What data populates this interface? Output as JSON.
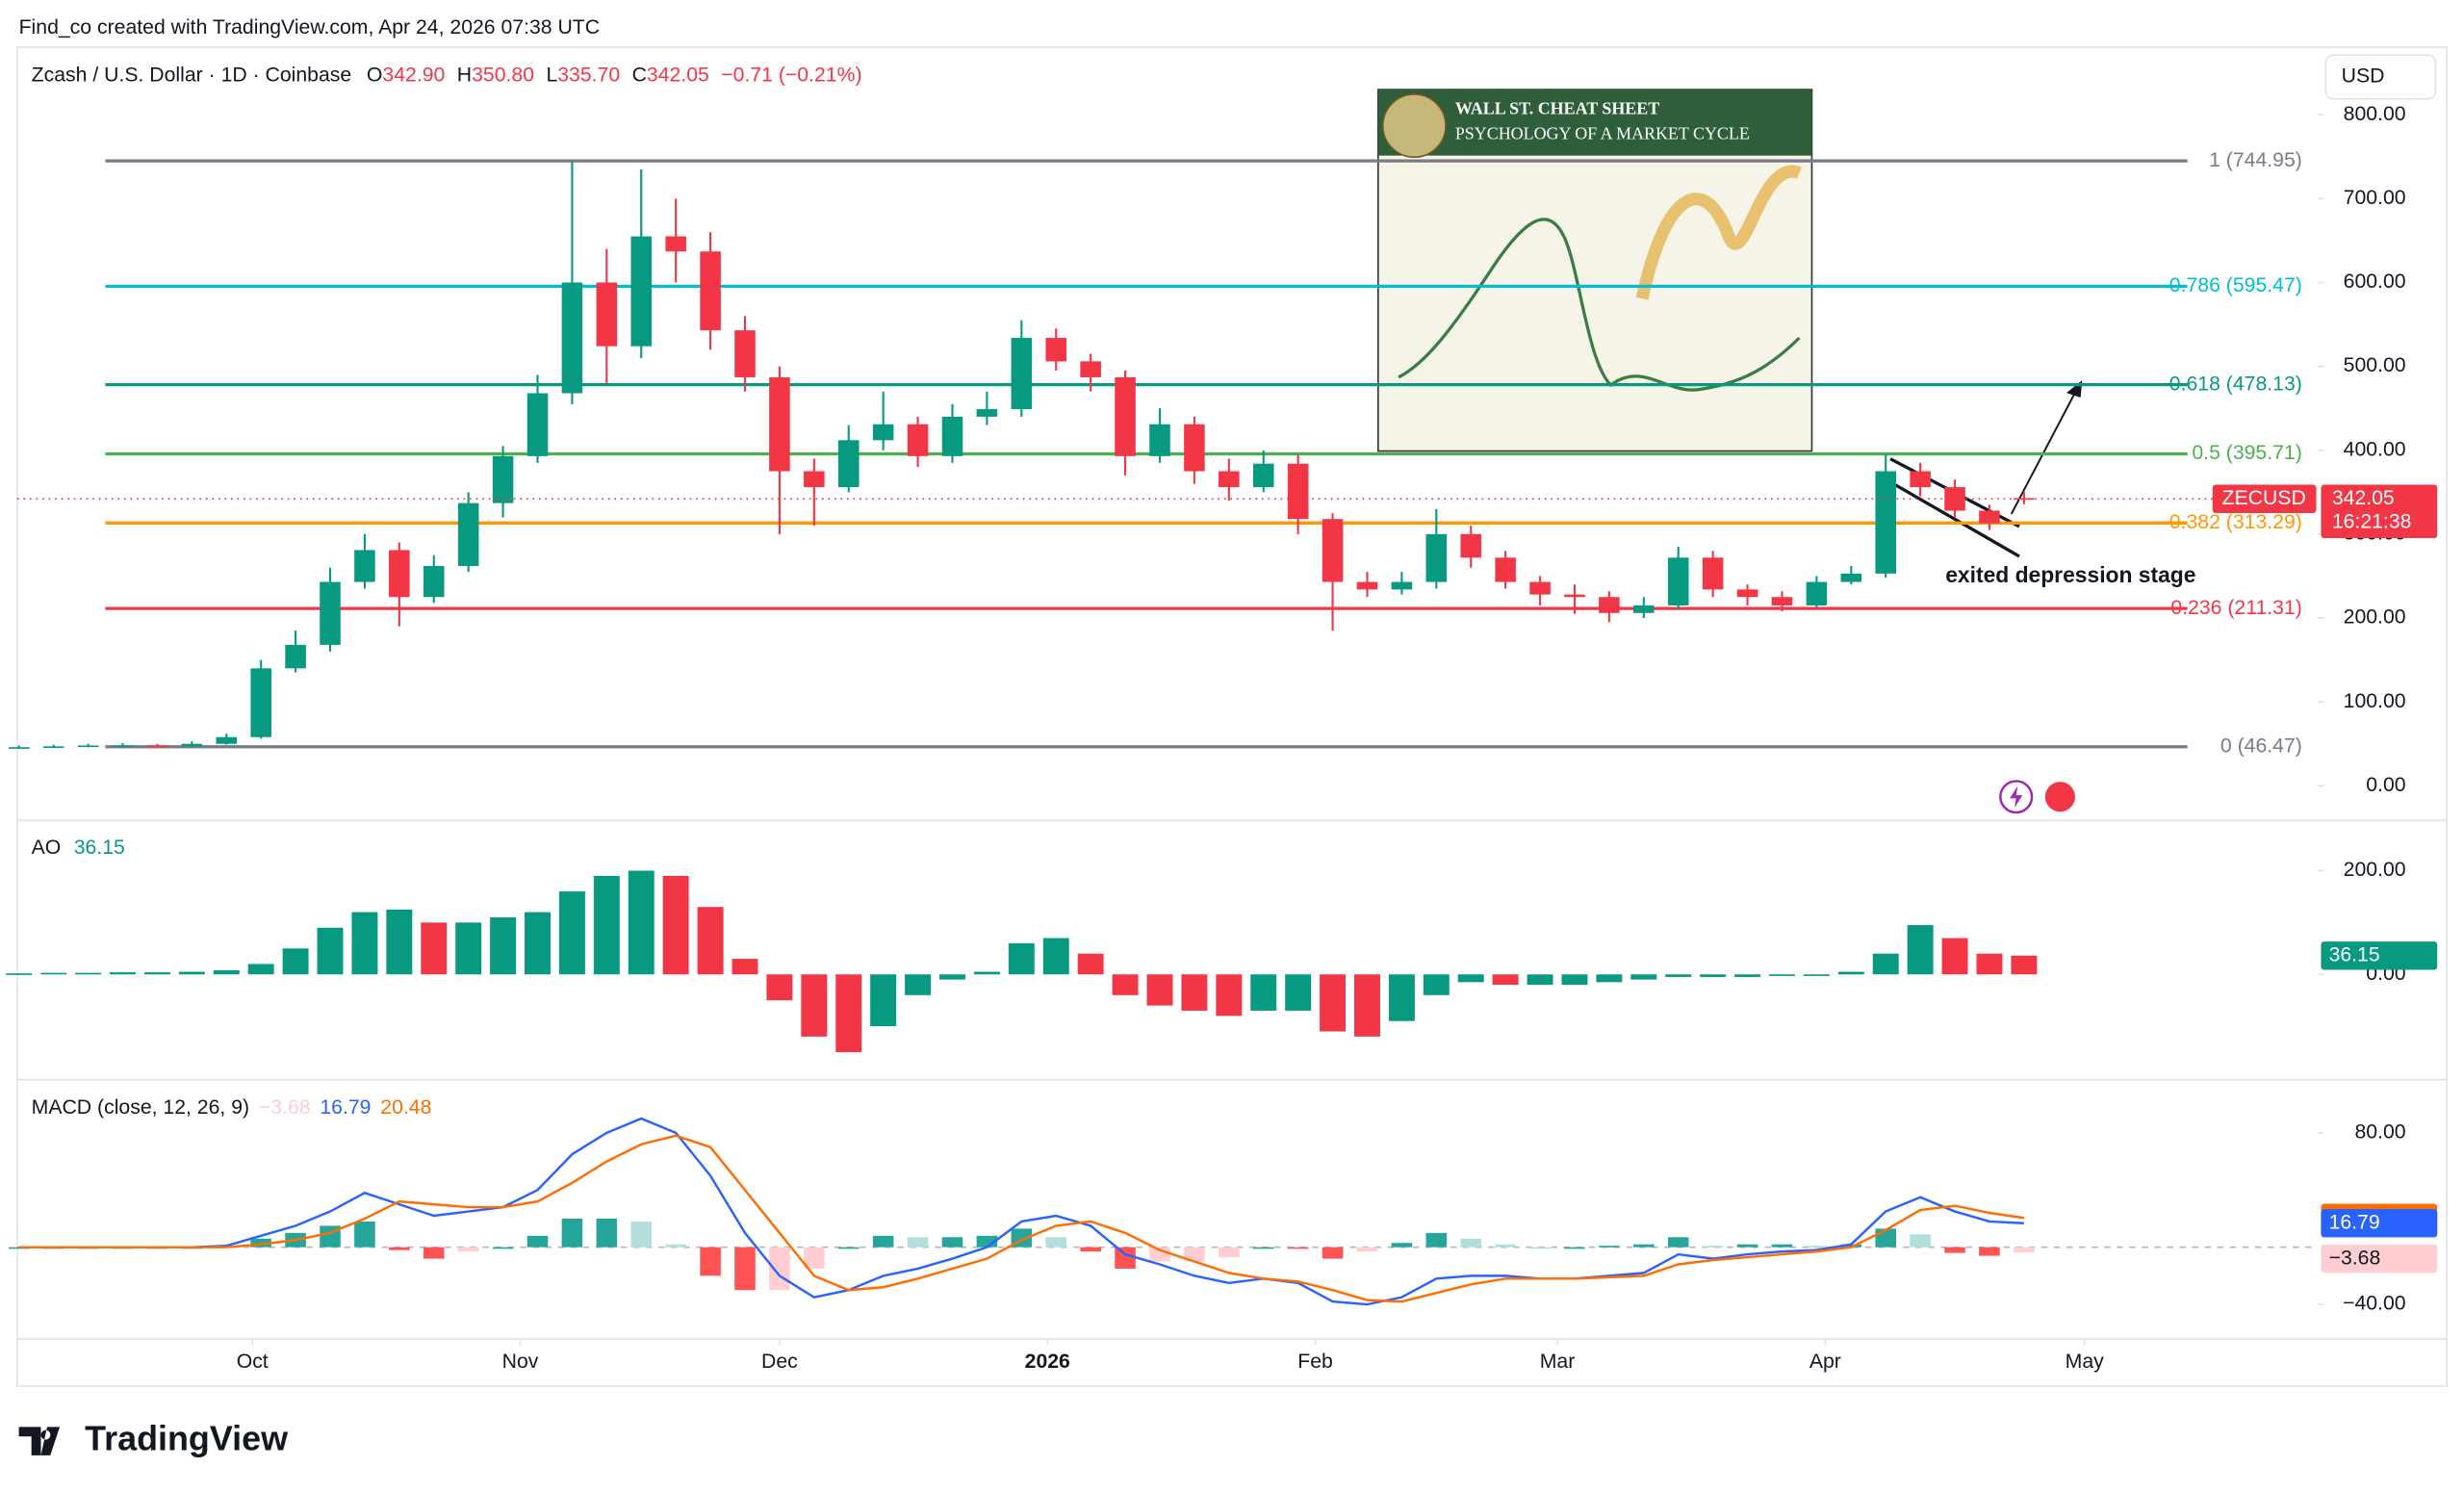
{
  "header": {
    "credit": "Find_co created with TradingView.com, Apr 24, 2026 07:38 UTC",
    "currency": "USD"
  },
  "footer": {
    "brand": "TradingView"
  },
  "chart_data": [
    {
      "type": "candlestick",
      "title": "Zcash / U.S. Dollar · 1D · Coinbase",
      "ohlc_legend": [
        {
          "label": "O",
          "value": "342.90"
        },
        {
          "label": "H",
          "value": "350.80"
        },
        {
          "label": "L",
          "value": "335.70"
        },
        {
          "label": "C",
          "value": "342.05"
        }
      ],
      "change": "−0.71 (−0.21%)",
      "up_color": "#089981",
      "down_color": "#f23645",
      "x": [
        0,
        4,
        8,
        12,
        16,
        20,
        24,
        28,
        32,
        36,
        40,
        44,
        48,
        52,
        56,
        60,
        64,
        68,
        72,
        76,
        80,
        84,
        88,
        92,
        96,
        100,
        104,
        108,
        112,
        116,
        120,
        124,
        128,
        132,
        136,
        140,
        144,
        148,
        152,
        156,
        160,
        164,
        168,
        172,
        176,
        180,
        184,
        188,
        192,
        196,
        200,
        204,
        208,
        212,
        216,
        220,
        224,
        228,
        232
      ],
      "open": [
        45,
        46,
        47,
        48,
        48,
        47,
        50,
        58,
        140,
        168,
        243,
        281,
        225,
        262,
        337,
        393,
        468,
        600,
        524,
        655,
        637,
        543,
        487,
        375,
        356,
        412,
        431,
        393,
        440,
        449,
        534,
        506,
        487,
        393,
        431,
        375,
        356,
        384,
        318,
        243,
        234,
        243,
        300,
        272,
        243,
        228,
        225,
        206,
        215,
        272,
        234,
        225,
        215,
        243,
        253,
        375,
        356,
        328,
        342.9
      ],
      "high": [
        48,
        49,
        50,
        51,
        50,
        53,
        62,
        150,
        185,
        260,
        300,
        290,
        275,
        350,
        405,
        490,
        745,
        640,
        735,
        700,
        660,
        560,
        500,
        390,
        430,
        470,
        440,
        455,
        470,
        555,
        545,
        515,
        495,
        450,
        440,
        390,
        400,
        395,
        325,
        255,
        255,
        330,
        310,
        280,
        250,
        240,
        232,
        225,
        285,
        280,
        240,
        232,
        250,
        262,
        395,
        385,
        365,
        335,
        350.8
      ],
      "low": [
        44,
        45,
        46,
        46,
        45,
        46,
        49,
        56,
        135,
        160,
        235,
        190,
        218,
        255,
        320,
        385,
        455,
        480,
        510,
        600,
        520,
        470,
        300,
        310,
        350,
        400,
        380,
        385,
        430,
        440,
        495,
        470,
        370,
        385,
        360,
        340,
        350,
        300,
        185,
        225,
        228,
        235,
        260,
        235,
        215,
        205,
        195,
        200,
        210,
        225,
        215,
        208,
        212,
        240,
        248,
        345,
        320,
        305,
        335.7
      ],
      "close": [
        46,
        47,
        48,
        48,
        47,
        50,
        58,
        140,
        168,
        243,
        281,
        225,
        262,
        337,
        393,
        468,
        600,
        524,
        655,
        637,
        543,
        487,
        375,
        356,
        412,
        431,
        393,
        440,
        449,
        534,
        506,
        487,
        393,
        431,
        375,
        356,
        384,
        318,
        243,
        234,
        243,
        300,
        272,
        243,
        228,
        225,
        206,
        215,
        272,
        234,
        225,
        215,
        243,
        253,
        375,
        356,
        328,
        313,
        342.05
      ],
      "xlim": [
        -0.2,
        266
      ],
      "xticks": [
        {
          "value": 27,
          "label": "Oct"
        },
        {
          "value": 58,
          "label": "Nov"
        },
        {
          "value": 88,
          "label": "Dec"
        },
        {
          "value": 119,
          "label": "2026",
          "bold": true
        },
        {
          "value": 150,
          "label": "Feb"
        },
        {
          "value": 178,
          "label": "Mar"
        },
        {
          "value": 209,
          "label": "Apr"
        },
        {
          "value": 239,
          "label": "May"
        }
      ],
      "ylim": [
        -37.5,
        880.6
      ],
      "yticks": [
        {
          "value": 800,
          "label": "800.00"
        },
        {
          "value": 700,
          "label": "700.00"
        },
        {
          "value": 600,
          "label": "600.00"
        },
        {
          "value": 500,
          "label": "500.00"
        },
        {
          "value": 400,
          "label": "400.00"
        },
        {
          "value": 300,
          "label": "300.00"
        },
        {
          "value": 200,
          "label": "200.00"
        },
        {
          "value": 100,
          "label": "100.00"
        },
        {
          "value": 0,
          "label": "0.00"
        }
      ],
      "fib_levels": [
        {
          "value": 744.95,
          "label": "1 (744.95)",
          "color": "#787b86"
        },
        {
          "value": 595.47,
          "label": "0.786 (595.47)",
          "color": "#00bcd4"
        },
        {
          "value": 478.13,
          "label": "0.618 (478.13)",
          "color": "#089981"
        },
        {
          "value": 395.71,
          "label": "0.5 (395.71)",
          "color": "#4caf50"
        },
        {
          "value": 313.29,
          "label": "0.382 (313.29)",
          "color": "#ff9800"
        },
        {
          "value": 211.31,
          "label": "0.236 (211.31)",
          "color": "#f23645"
        },
        {
          "value": 46.47,
          "label": "0 (46.47)",
          "color": "#787b86"
        }
      ],
      "price_tag": {
        "symbol": "ZECUSD",
        "value": 342.05,
        "countdown": "16:21:38"
      },
      "annotation": "exited depression stage",
      "inset": {
        "title": "WALL ST. CHEAT SHEET",
        "subtitle": "PSYCHOLOGY OF A MARKET CYCLE"
      }
    },
    {
      "type": "ao",
      "title": "AO",
      "x": [
        0,
        4,
        8,
        12,
        16,
        20,
        24,
        28,
        32,
        36,
        40,
        44,
        48,
        52,
        56,
        60,
        64,
        68,
        72,
        76,
        80,
        84,
        88,
        92,
        96,
        100,
        104,
        108,
        112,
        116,
        120,
        124,
        128,
        132,
        136,
        140,
        144,
        148,
        152,
        156,
        160,
        164,
        168,
        172,
        176,
        180,
        184,
        188,
        192,
        196,
        200,
        204,
        208,
        212,
        216,
        220,
        224,
        228,
        232
      ],
      "values": [
        2,
        3,
        3,
        4,
        4,
        5,
        8,
        20,
        50,
        90,
        120,
        125,
        100,
        100,
        110,
        120,
        160,
        190,
        200,
        190,
        130,
        30,
        -50,
        -120,
        -150,
        -100,
        -40,
        -10,
        5,
        60,
        70,
        40,
        -40,
        -60,
        -70,
        -80,
        -70,
        -70,
        -110,
        -120,
        -90,
        -40,
        -15,
        -20,
        -20,
        -20,
        -15,
        -10,
        -5,
        -5,
        -5,
        -3,
        0,
        5,
        40,
        95,
        70,
        40,
        36.15
      ],
      "up_color": "#089981",
      "down_color": "#f23645",
      "xlim": [
        -0.2,
        266
      ],
      "ylim": [
        -197,
        291
      ],
      "yticks": [
        {
          "value": 200,
          "label": "200.00"
        },
        {
          "value": 0,
          "label": "0.00"
        }
      ]
    },
    {
      "type": "macd",
      "title": "MACD (close, 12, 26, 9)",
      "x": [
        0,
        4,
        8,
        12,
        16,
        20,
        24,
        28,
        32,
        36,
        40,
        44,
        48,
        52,
        56,
        60,
        64,
        68,
        72,
        76,
        80,
        84,
        88,
        92,
        96,
        100,
        104,
        108,
        112,
        116,
        120,
        124,
        128,
        132,
        136,
        140,
        144,
        148,
        152,
        156,
        160,
        164,
        168,
        172,
        176,
        180,
        184,
        188,
        192,
        196,
        200,
        204,
        208,
        212,
        216,
        220,
        224,
        228,
        232
      ],
      "series": [
        {
          "name": "MACD",
          "color": "#2962ff",
          "values": [
            0,
            0,
            0,
            0,
            0,
            0,
            1,
            8,
            15,
            25,
            38,
            30,
            22,
            25,
            28,
            40,
            65,
            80,
            90,
            80,
            50,
            10,
            -20,
            -35,
            -30,
            -20,
            -15,
            -8,
            0,
            18,
            22,
            15,
            -5,
            -12,
            -20,
            -25,
            -22,
            -25,
            -38,
            -40,
            -35,
            -22,
            -20,
            -20,
            -22,
            -22,
            -20,
            -18,
            -5,
            -8,
            -5,
            -3,
            -2,
            2,
            25,
            35,
            25,
            18,
            16.79
          ]
        },
        {
          "name": "Signal",
          "color": "#ff6d00",
          "values": [
            0,
            0,
            0,
            0,
            0,
            0,
            0,
            2,
            5,
            10,
            20,
            32,
            30,
            28,
            28,
            32,
            45,
            60,
            72,
            78,
            70,
            40,
            10,
            -20,
            -30,
            -28,
            -22,
            -15,
            -8,
            5,
            15,
            18,
            10,
            -2,
            -10,
            -18,
            -22,
            -24,
            -30,
            -37,
            -38,
            -32,
            -26,
            -22,
            -22,
            -22,
            -21,
            -20,
            -12,
            -9,
            -7,
            -5,
            -3,
            0,
            12,
            26,
            29,
            24,
            20.48
          ]
        }
      ],
      "histogram": {
        "values": [
          0,
          0,
          0,
          0,
          0,
          0,
          1,
          6,
          10,
          15,
          18,
          -2,
          -8,
          -3,
          0,
          8,
          20,
          20,
          18,
          2,
          -20,
          -30,
          -30,
          -15,
          0,
          8,
          7,
          7,
          8,
          13,
          7,
          -3,
          -15,
          -10,
          -10,
          -7,
          0,
          -1,
          -8,
          -3,
          3,
          10,
          6,
          2,
          0,
          0,
          1,
          2,
          7,
          1,
          2,
          2,
          1,
          2,
          13,
          9,
          -4,
          -6,
          -3.68
        ],
        "last_label": "−3.68"
      },
      "xlim": [
        -0.2,
        266
      ],
      "ylim": [
        -62,
        115
      ],
      "yticks": [
        {
          "value": 80,
          "label": "80.00"
        },
        {
          "value": -40,
          "label": "−40.00"
        }
      ]
    }
  ]
}
